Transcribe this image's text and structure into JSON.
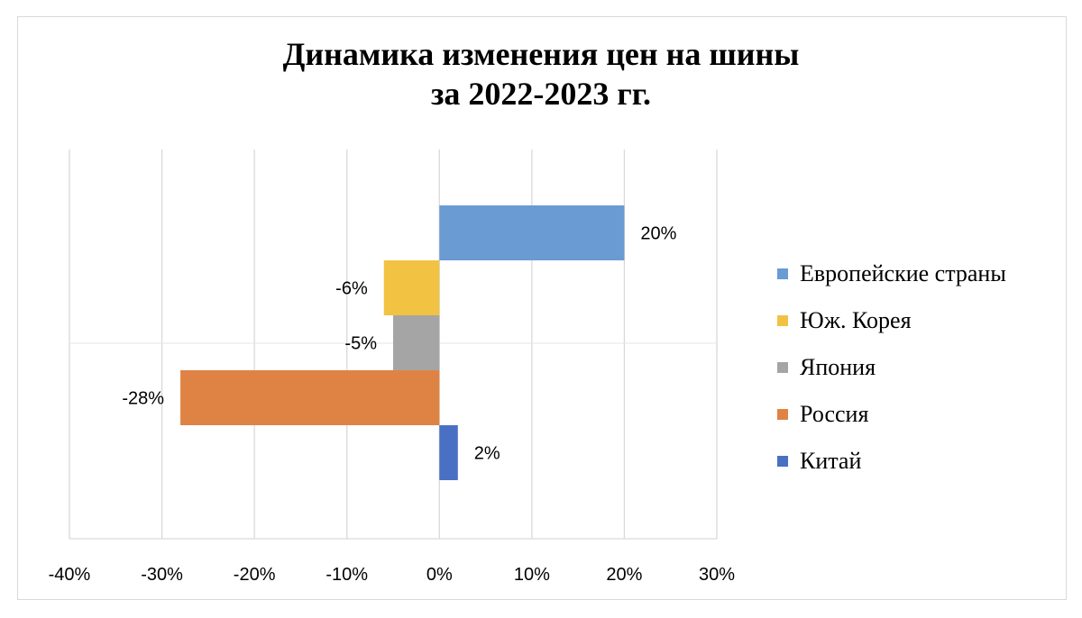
{
  "chart_data": {
    "type": "bar",
    "orientation": "horizontal",
    "title": [
      "Динамика изменения цен на шины",
      "за 2022-2023 гг."
    ],
    "xlim": [
      -0.4,
      0.3
    ],
    "x_ticks": [
      -0.4,
      -0.3,
      -0.2,
      -0.1,
      0,
      0.1,
      0.2,
      0.3
    ],
    "x_tick_labels": [
      "-40%",
      "-30%",
      "-20%",
      "-10%",
      "0%",
      "10%",
      "20%",
      "30%"
    ],
    "grid": "vertical",
    "legend_position": "right",
    "series": [
      {
        "name": "Европейские страны",
        "value": 0.2,
        "label": "20%",
        "color": "#6a9bd3"
      },
      {
        "name": "Юж. Корея",
        "value": -0.06,
        "label": "-6%",
        "color": "#f2c342"
      },
      {
        "name": "Япония",
        "value": -0.05,
        "label": "-5%",
        "color": "#a5a5a5"
      },
      {
        "name": "Россия",
        "value": -0.28,
        "label": "-28%",
        "color": "#df8344"
      },
      {
        "name": "Китай",
        "value": 0.02,
        "label": "2%",
        "color": "#4a70c4"
      }
    ]
  }
}
